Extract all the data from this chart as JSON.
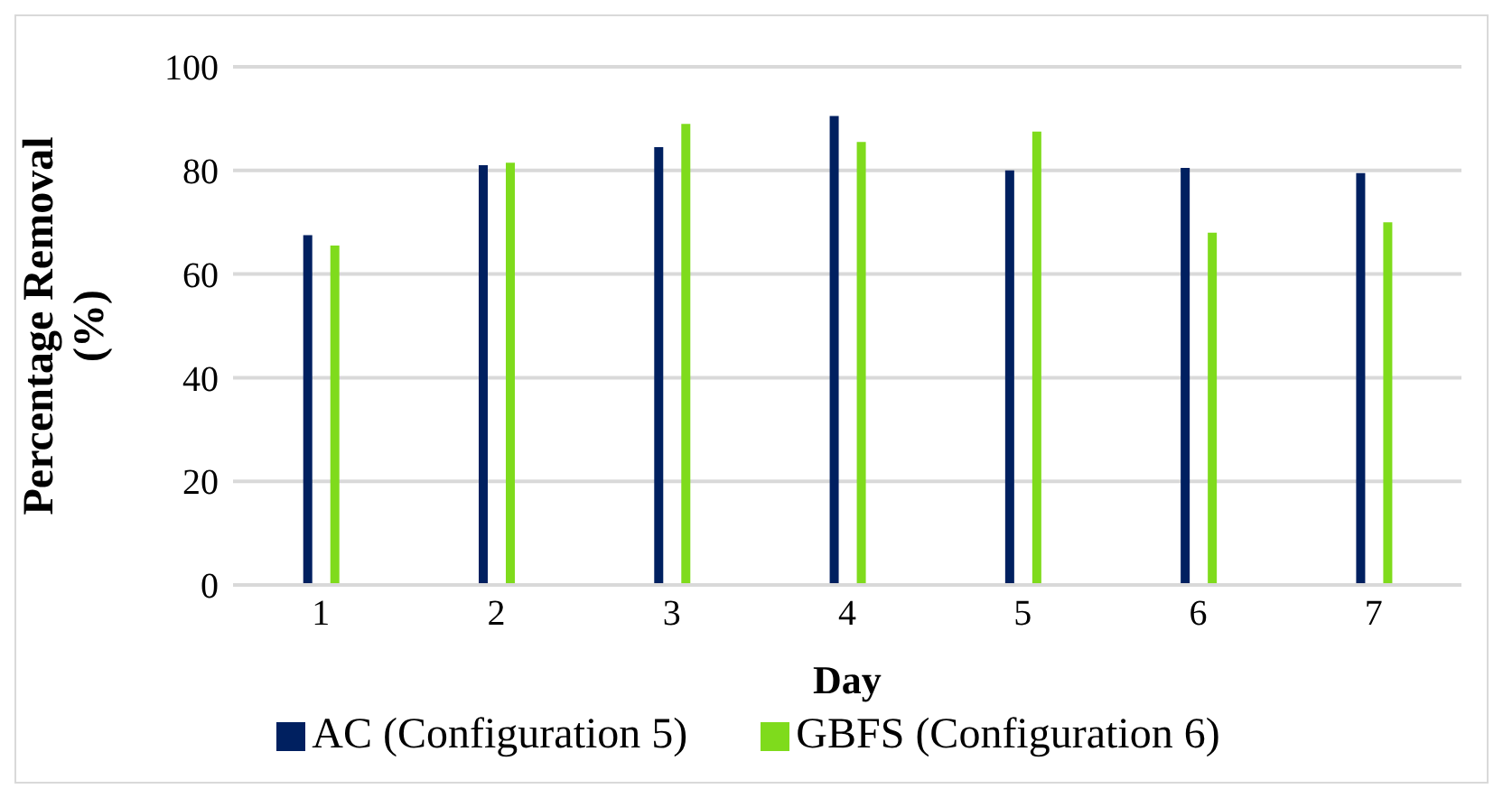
{
  "chart_data": {
    "type": "bar",
    "xlabel": "Day",
    "ylabel": "Percentage Removal (%)",
    "categories": [
      "1",
      "2",
      "3",
      "4",
      "5",
      "6",
      "7"
    ],
    "series": [
      {
        "name": "AC (Configuration 5)",
        "color": "#002060",
        "values": [
          67.5,
          81,
          84.5,
          90.5,
          80,
          80.5,
          79.5
        ]
      },
      {
        "name": "GBFS (Configuration 6)",
        "color": "#7fdb1c",
        "values": [
          65.5,
          81.5,
          89,
          85.5,
          87.5,
          68,
          70
        ]
      }
    ],
    "ylim": [
      0,
      100
    ],
    "yticks": [
      0,
      20,
      40,
      60,
      80,
      100
    ],
    "grid": "y",
    "legend": "bottom"
  }
}
